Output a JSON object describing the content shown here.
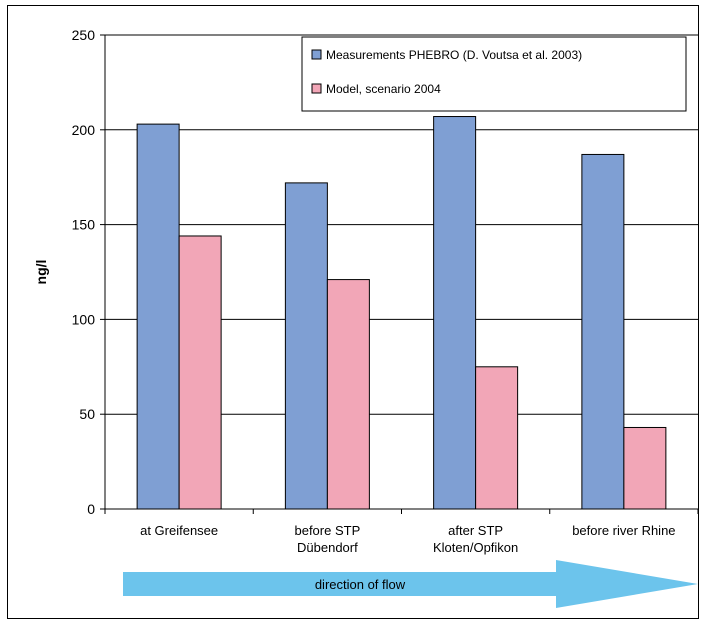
{
  "chart_data": {
    "type": "bar",
    "categories": [
      [
        "at Greifensee"
      ],
      [
        "before STP",
        "Dübendorf"
      ],
      [
        "after STP",
        "Kloten/Opfikon"
      ],
      [
        "before river Rhine"
      ]
    ],
    "series": [
      {
        "name": "Measurements PHEBRO (D. Voutsa et al. 2003)",
        "color": "#7f9fd3",
        "values": [
          203,
          172,
          207,
          187
        ]
      },
      {
        "name": "Model, scenario 2004",
        "color": "#f2a6b7",
        "values": [
          144,
          121,
          75,
          43
        ]
      }
    ],
    "ylabel": "ng/l",
    "xlabel": "",
    "ylim": [
      0,
      250
    ],
    "yticks": [
      0,
      50,
      100,
      150,
      200,
      250
    ],
    "grid": true,
    "legend_position": "top-right",
    "annotation": {
      "text": "direction of flow",
      "color": "#6cc4ec"
    }
  }
}
